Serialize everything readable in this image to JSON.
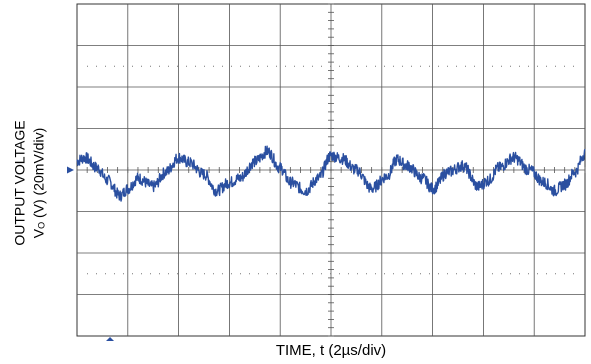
{
  "chart_data": {
    "type": "line",
    "xlabel": "TIME, t (2µs/div)",
    "ylabel_line1": "OUTPUT VOLTAGE",
    "ylabel_v": "V",
    "ylabel_sub": "O",
    "ylabel_rest": " (V) (20mV/div)",
    "x_divisions": 10,
    "y_divisions": 8,
    "grid": true,
    "x_unit": "div",
    "y_unit": "div",
    "xlim": [
      0,
      10
    ],
    "ylim": [
      -4,
      4
    ],
    "series": [
      {
        "color": "#2a4fa0",
        "x": [
          0.0,
          0.15,
          0.4,
          0.6,
          0.85,
          1.0,
          1.2,
          1.5,
          1.75,
          2.0,
          2.2,
          2.5,
          2.75,
          3.0,
          3.2,
          3.5,
          3.75,
          4.0,
          4.2,
          4.5,
          4.75,
          5.0,
          5.2,
          5.5,
          5.8,
          6.1,
          6.3,
          6.5,
          6.8,
          7.0,
          7.3,
          7.6,
          7.9,
          8.1,
          8.3,
          8.6,
          8.9,
          9.2,
          9.4,
          9.6,
          9.8,
          10.0
        ],
        "y": [
          0.22,
          0.3,
          0.05,
          -0.25,
          -0.62,
          -0.45,
          -0.2,
          -0.4,
          -0.05,
          0.3,
          0.18,
          -0.1,
          -0.5,
          -0.3,
          -0.2,
          0.2,
          0.45,
          0.05,
          -0.3,
          -0.5,
          -0.2,
          0.35,
          0.28,
          0.0,
          -0.45,
          -0.15,
          0.25,
          0.1,
          -0.2,
          -0.45,
          -0.05,
          0.1,
          -0.4,
          -0.25,
          0.05,
          0.3,
          0.0,
          -0.3,
          -0.5,
          -0.35,
          -0.05,
          0.4
        ]
      }
    ]
  }
}
